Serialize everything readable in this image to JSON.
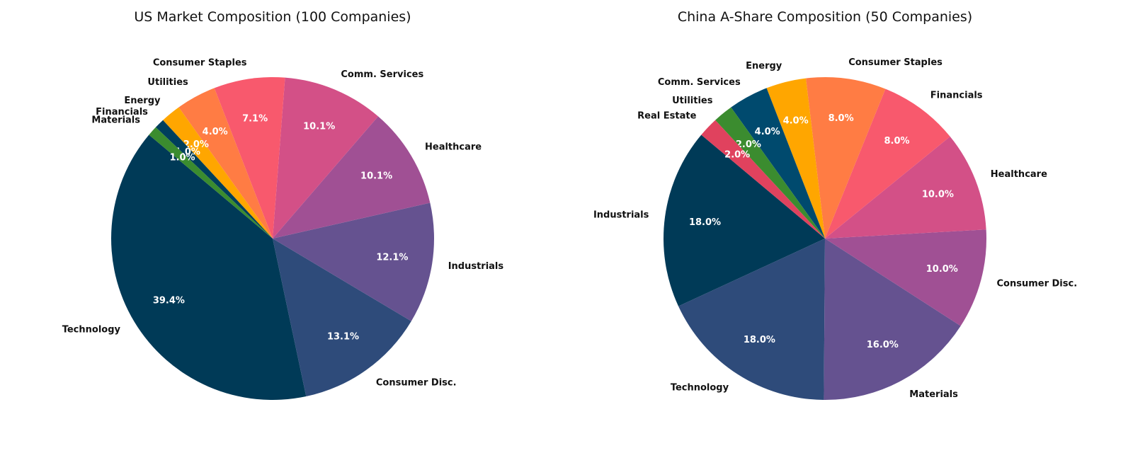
{
  "chart_data": [
    {
      "type": "pie",
      "title": "US Market Composition (100 Companies)",
      "start_angle_deg": 140,
      "direction": "counterclockwise",
      "slices": [
        {
          "label": "Technology",
          "value": 39.4,
          "pct_text": "39.4%",
          "color": "#003a57"
        },
        {
          "label": "Consumer Disc.",
          "value": 13.1,
          "pct_text": "13.1%",
          "color": "#2e4b7a"
        },
        {
          "label": "Industrials",
          "value": 12.1,
          "pct_text": "12.1%",
          "color": "#655290"
        },
        {
          "label": "Healthcare",
          "value": 10.1,
          "pct_text": "10.1%",
          "color": "#a05094"
        },
        {
          "label": "Comm. Services",
          "value": 10.1,
          "pct_text": "10.1%",
          "color": "#d35087"
        },
        {
          "label": "Consumer Staples",
          "value": 7.1,
          "pct_text": "7.1%",
          "color": "#f8596d"
        },
        {
          "label": "Utilities",
          "value": 4.0,
          "pct_text": "4.0%",
          "color": "#ff7c44"
        },
        {
          "label": "Energy",
          "value": 2.0,
          "pct_text": "2.0%",
          "color": "#ffa600"
        },
        {
          "label": "Financials",
          "value": 1.0,
          "pct_text": "1.0%",
          "color": "#003f5c"
        },
        {
          "label": "Materials",
          "value": 1.0,
          "pct_text": "1.0%",
          "color": "#3b8c2f"
        }
      ]
    },
    {
      "type": "pie",
      "title": "China A-Share Composition (50 Companies)",
      "start_angle_deg": 140,
      "direction": "counterclockwise",
      "slices": [
        {
          "label": "Industrials",
          "value": 18.0,
          "pct_text": "18.0%",
          "color": "#003a57"
        },
        {
          "label": "Technology",
          "value": 18.0,
          "pct_text": "18.0%",
          "color": "#2e4b7a"
        },
        {
          "label": "Materials",
          "value": 16.0,
          "pct_text": "16.0%",
          "color": "#655290"
        },
        {
          "label": "Consumer Disc.",
          "value": 10.0,
          "pct_text": "10.0%",
          "color": "#a05094"
        },
        {
          "label": "Healthcare",
          "value": 10.0,
          "pct_text": "10.0%",
          "color": "#d35087"
        },
        {
          "label": "Financials",
          "value": 8.0,
          "pct_text": "8.0%",
          "color": "#f8596d"
        },
        {
          "label": "Consumer Staples",
          "value": 8.0,
          "pct_text": "8.0%",
          "color": "#ff7c44"
        },
        {
          "label": "Energy",
          "value": 4.0,
          "pct_text": "4.0%",
          "color": "#ffa600"
        },
        {
          "label": "Comm. Services",
          "value": 4.0,
          "pct_text": "4.0%",
          "color": "#004a6e"
        },
        {
          "label": "Utilities",
          "value": 2.0,
          "pct_text": "2.0%",
          "color": "#3b8c2f"
        },
        {
          "label": "Real Estate",
          "value": 2.0,
          "pct_text": "2.0%",
          "color": "#e0425e"
        }
      ]
    }
  ]
}
